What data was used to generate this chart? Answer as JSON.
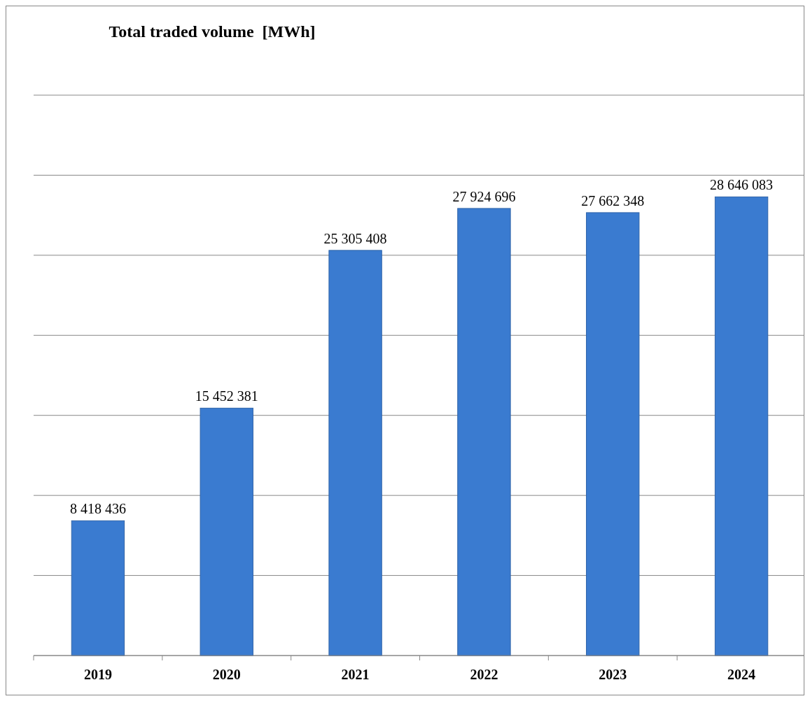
{
  "chart_data": {
    "type": "bar",
    "title": "Total traded volume  [MWh]",
    "categories": [
      "2019",
      "2020",
      "2021",
      "2022",
      "2023",
      "2024"
    ],
    "values": [
      8418436,
      15452381,
      25305408,
      27924696,
      27662348,
      28646083
    ],
    "color": "#3a7bd0",
    "ylim": [
      0,
      35000000
    ],
    "yticks": [
      {
        "value": 0,
        "label": null
      },
      {
        "value": 5000000,
        "label": null
      },
      {
        "value": 10000000,
        "label": null
      },
      {
        "value": 15000000,
        "label": null
      },
      {
        "value": 20000000,
        "label": null
      },
      {
        "value": 25000000,
        "label": null
      },
      {
        "value": 30000000,
        "label": null
      },
      {
        "value": 35000000,
        "label": null
      }
    ],
    "grid": "y",
    "data_labels": true,
    "tick_labels": "x"
  }
}
